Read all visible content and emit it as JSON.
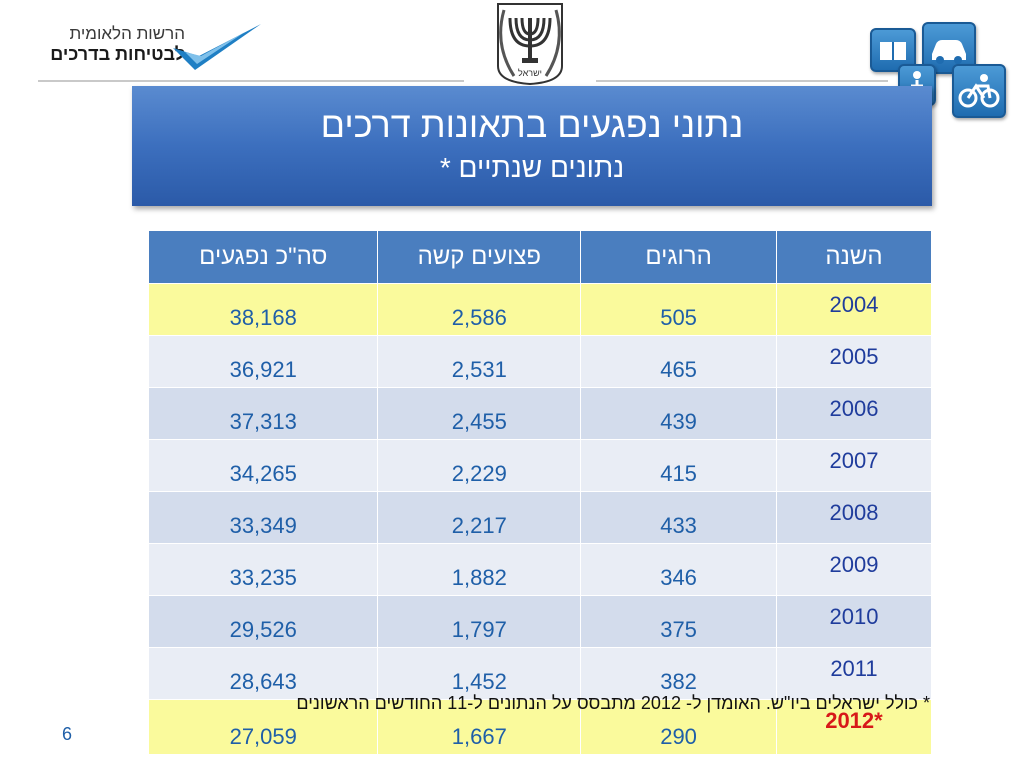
{
  "logo": {
    "line1": "הרשות הלאומית",
    "line2": "לבטיחות בדרכים"
  },
  "emblem": {
    "caption": "ישראל"
  },
  "banner": {
    "title": "נתוני נפגעים בתאונות  דרכים",
    "subtitle": "נתונים שנתיים *"
  },
  "table": {
    "headers": [
      "השנה",
      "הרוגים",
      "פצועים קשה",
      "סה\"כ נפגעים"
    ],
    "rows": [
      {
        "year": "2004",
        "killed": "505",
        "seriously_injured": "2,586",
        "total": "38,168"
      },
      {
        "year": "2005",
        "killed": "465",
        "seriously_injured": "2,531",
        "total": "36,921"
      },
      {
        "year": "2006",
        "killed": "439",
        "seriously_injured": "2,455",
        "total": "37,313"
      },
      {
        "year": "2007",
        "killed": "415",
        "seriously_injured": "2,229",
        "total": "34,265"
      },
      {
        "year": "2008",
        "killed": "433",
        "seriously_injured": "2,217",
        "total": "33,349"
      },
      {
        "year": "2009",
        "killed": "346",
        "seriously_injured": "1,882",
        "total": "33,235"
      },
      {
        "year": "2010",
        "killed": "375",
        "seriously_injured": "1,797",
        "total": "29,526"
      },
      {
        "year": "2011",
        "killed": "382",
        "seriously_injured": "1,452",
        "total": "28,643"
      },
      {
        "year": "*2012",
        "killed": "290",
        "seriously_injured": "1,667",
        "total": "27,059"
      }
    ]
  },
  "footnote": "*  כולל ישראלים ביו\"ש. האומדן  ל- 2012 מתבסס על הנתונים ל-11 החודשים הראשונים",
  "page_number": "6",
  "colors": {
    "banner": "#3c6fbe",
    "header": "#4a7ebf",
    "highlight": "#fafa9c",
    "row_dark": "#d3dcec",
    "row_light": "#e9edf5",
    "number_text": "#1f5fa8",
    "special_year": "#d71919"
  }
}
